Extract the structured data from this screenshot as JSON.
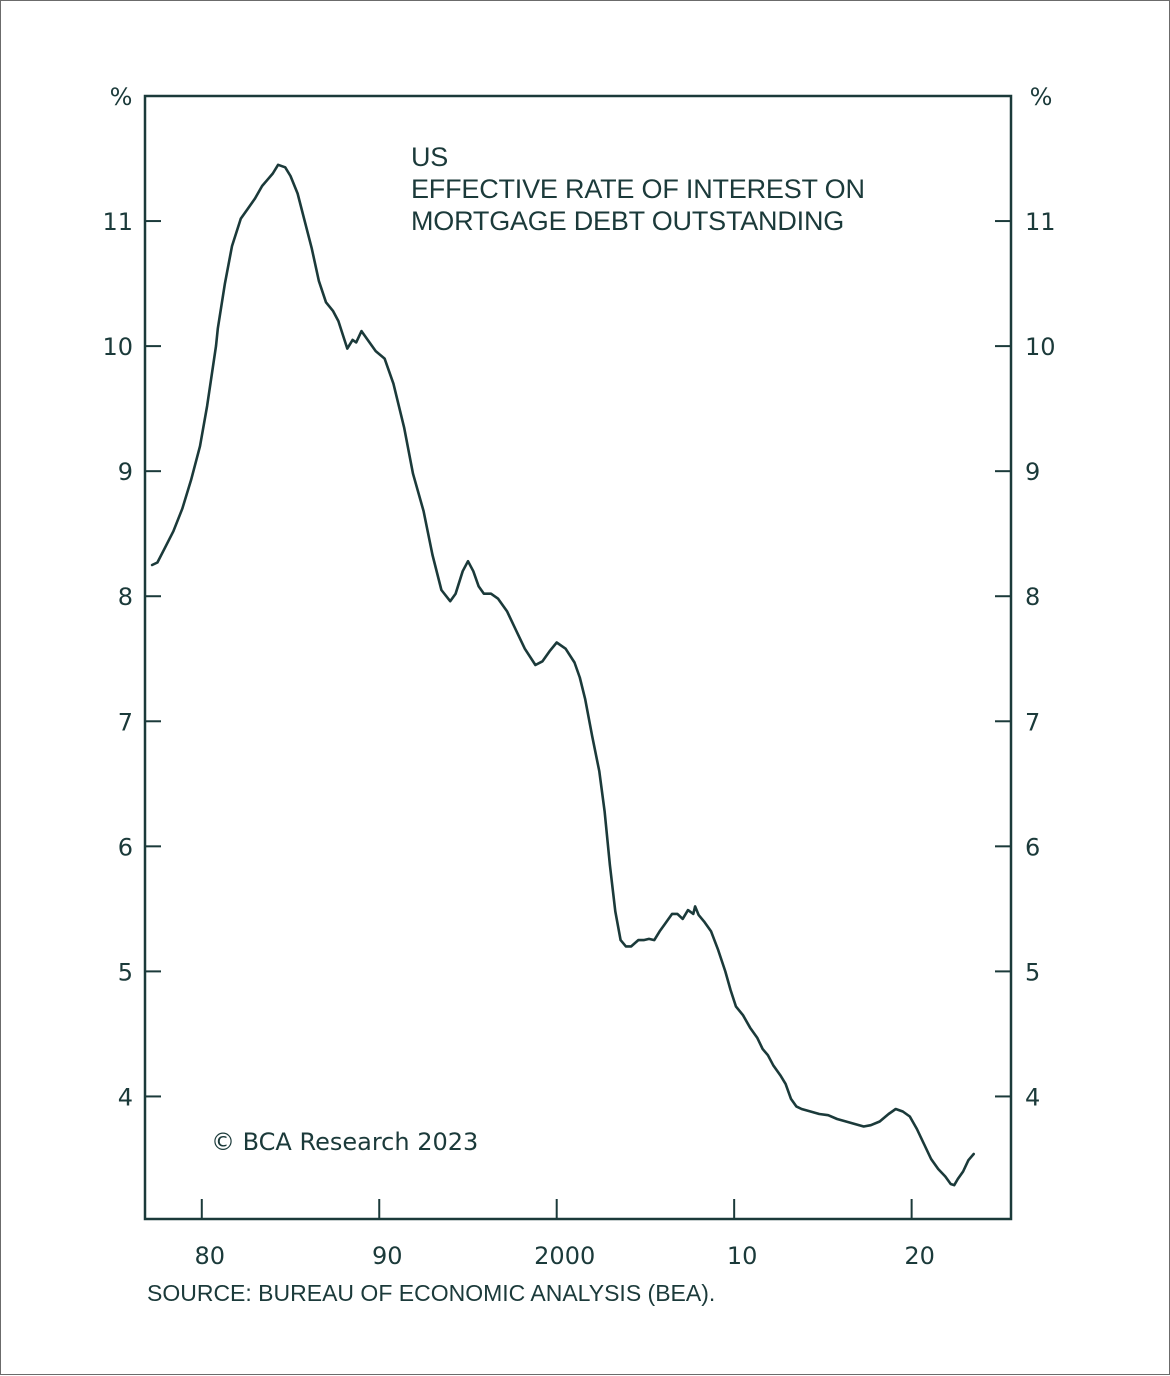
{
  "chart_data": {
    "type": "line",
    "title_lines": [
      "US",
      "EFFECTIVE RATE OF INTEREST ON",
      "MORTGAGE DEBT OUTSTANDING"
    ],
    "y_unit_left": "%",
    "y_unit_right": "%",
    "x_tick_labels": [
      "80",
      "90",
      "2000",
      "10",
      "20"
    ],
    "x_tick_values": [
      1980,
      1990,
      2000,
      2010,
      2020
    ],
    "y_ticks": [
      4,
      5,
      6,
      7,
      8,
      9,
      10,
      11
    ],
    "y_tick_labels": [
      "4",
      "5",
      "6",
      "7",
      "8",
      "9",
      "10",
      "11"
    ],
    "xlim": [
      1976.8,
      2025.6
    ],
    "ylim": [
      3.02,
      12.0
    ],
    "grid": false,
    "line_color": "#1b3a3a",
    "copyright": "© BCA Research 2023",
    "source": "SOURCE: BUREAU OF ECONOMIC ANALYSIS (BEA).",
    "series": [
      {
        "x": [
          1977.2,
          1977.5,
          1977.9,
          1978.4,
          1978.9,
          1979.4,
          1979.9,
          1980.3,
          1980.8,
          1980.9,
          1981.3,
          1981.7,
          1982.2,
          1982.6,
          1983.0,
          1983.4,
          1983.7,
          1984.0,
          1984.3,
          1984.7,
          1985.0,
          1985.4,
          1985.8,
          1986.2,
          1986.6,
          1987.0,
          1987.4,
          1987.7,
          1988.2,
          1988.5,
          1988.7,
          1989.0,
          1989.3,
          1989.8,
          1990.3,
          1990.8,
          1991.4,
          1991.9,
          1992.5,
          1993.0,
          1993.5,
          1994.0,
          1994.3,
          1994.7,
          1995.0,
          1995.3,
          1995.6,
          1995.9,
          1996.3,
          1996.7,
          1997.2,
          1997.7,
          1998.2,
          1998.8,
          1999.2,
          1999.6,
          2000.0,
          2000.5,
          2001.0,
          2001.3,
          2001.6,
          2002.0,
          2002.4,
          2002.7,
          2003.0,
          2003.3,
          2003.6,
          2003.9,
          2004.2,
          2004.6,
          2004.9,
          2005.2,
          2005.5,
          2005.8,
          2006.1,
          2006.5,
          2006.8,
          2007.1,
          2007.4,
          2007.7,
          2007.8,
          2008.0,
          2008.3,
          2008.7,
          2009.1,
          2009.5,
          2009.8,
          2010.1,
          2010.5,
          2010.9,
          2011.3,
          2011.6,
          2011.9,
          2012.2,
          2012.6,
          2012.9,
          2013.2,
          2013.5,
          2013.8,
          2014.3,
          2014.8,
          2015.3,
          2015.8,
          2016.3,
          2016.8,
          2017.3,
          2017.7,
          2018.2,
          2018.7,
          2019.1,
          2019.5,
          2019.9,
          2020.3,
          2020.7,
          2021.1,
          2021.5,
          2021.9,
          2022.2,
          2022.4,
          2022.6,
          2022.9,
          2023.2,
          2023.5
        ],
        "y": [
          8.25,
          8.27,
          8.38,
          8.52,
          8.7,
          8.93,
          9.2,
          9.52,
          10.0,
          10.14,
          10.5,
          10.8,
          11.02,
          11.1,
          11.18,
          11.28,
          11.33,
          11.38,
          11.45,
          11.43,
          11.36,
          11.22,
          11.0,
          10.78,
          10.52,
          10.35,
          10.28,
          10.2,
          9.98,
          10.05,
          10.03,
          10.12,
          10.06,
          9.96,
          9.9,
          9.7,
          9.35,
          8.98,
          8.68,
          8.33,
          8.05,
          7.96,
          8.02,
          8.2,
          8.28,
          8.2,
          8.08,
          8.02,
          8.02,
          7.98,
          7.88,
          7.73,
          7.58,
          7.45,
          7.48,
          7.56,
          7.63,
          7.58,
          7.47,
          7.35,
          7.18,
          6.88,
          6.6,
          6.28,
          5.85,
          5.48,
          5.25,
          5.2,
          5.2,
          5.25,
          5.25,
          5.26,
          5.25,
          5.32,
          5.38,
          5.46,
          5.46,
          5.42,
          5.49,
          5.46,
          5.52,
          5.45,
          5.4,
          5.32,
          5.17,
          5.0,
          4.85,
          4.72,
          4.65,
          4.55,
          4.47,
          4.38,
          4.33,
          4.25,
          4.17,
          4.1,
          3.98,
          3.92,
          3.9,
          3.88,
          3.86,
          3.85,
          3.82,
          3.8,
          3.78,
          3.76,
          3.77,
          3.8,
          3.86,
          3.9,
          3.88,
          3.84,
          3.74,
          3.62,
          3.5,
          3.42,
          3.36,
          3.3,
          3.29,
          3.34,
          3.4,
          3.49,
          3.54
        ]
      }
    ]
  }
}
